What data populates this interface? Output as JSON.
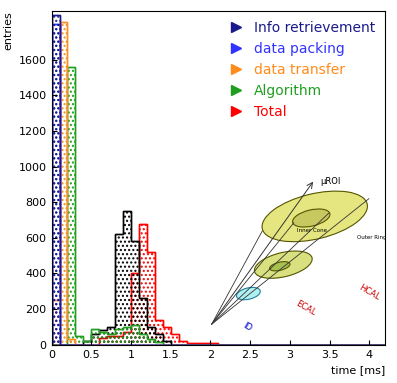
{
  "chart_data": {
    "type": "histogram",
    "x_label": "time [ms]",
    "y_label": "entries",
    "bins": [
      0,
      0.1,
      0.2,
      0.3,
      0.4,
      0.5,
      0.6,
      0.7,
      0.8,
      0.9,
      1.0,
      1.1,
      1.2,
      1.3,
      1.4,
      1.5,
      1.6,
      1.7,
      1.8,
      1.9,
      2.0,
      2.1,
      2.2,
      2.3,
      2.4,
      2.5,
      2.6,
      2.7,
      2.8,
      2.9,
      3.0,
      3.1,
      3.2,
      3.3,
      3.4,
      3.5,
      3.6,
      3.7,
      3.8,
      3.9,
      4.0,
      4.1,
      4.2
    ],
    "series": [
      {
        "name": "Total",
        "color": "#ff0000",
        "values": [
          0,
          0,
          0,
          0,
          0,
          0,
          40,
          50,
          50,
          70,
          400,
          680,
          520,
          140,
          100,
          60,
          20,
          10,
          10,
          10,
          10,
          0,
          0,
          0,
          0,
          0,
          0,
          0,
          0,
          0,
          0,
          0,
          0,
          0,
          0,
          0,
          0,
          0,
          0,
          0,
          0,
          0
        ]
      },
      {
        "color": "#000000",
        "values": [
          0,
          0,
          0,
          0,
          20,
          60,
          80,
          100,
          620,
          750,
          580,
          260,
          100,
          60,
          20,
          0,
          0,
          0,
          0,
          0,
          0,
          0,
          0,
          0,
          0,
          0,
          0,
          0,
          0,
          0,
          0,
          0,
          0,
          0,
          0,
          0,
          0,
          0,
          0,
          0,
          0,
          0
        ]
      },
      {
        "name": "Algorithm",
        "color": "#1f9e1f",
        "values": [
          0,
          0,
          1560,
          50,
          20,
          90,
          70,
          60,
          90,
          100,
          110,
          60,
          30,
          15,
          0,
          0,
          0,
          0,
          0,
          0,
          0,
          0,
          0,
          0,
          0,
          0,
          0,
          0,
          0,
          0,
          0,
          0,
          0,
          0,
          0,
          0,
          0,
          0,
          0,
          0,
          0,
          0
        ]
      },
      {
        "name": "data transfer",
        "color": "#ff8c1a",
        "values": [
          250,
          1810,
          30,
          0,
          0,
          0,
          0,
          0,
          0,
          0,
          0,
          0,
          0,
          0,
          0,
          0,
          0,
          0,
          0,
          0,
          0,
          0,
          0,
          0,
          0,
          0,
          0,
          0,
          0,
          0,
          0,
          0,
          0,
          0,
          0,
          0,
          0,
          0,
          0,
          0,
          0,
          0
        ]
      },
      {
        "name": "data packing",
        "color": "#3333ff",
        "values": [
          1800,
          0,
          0,
          0,
          0,
          0,
          0,
          0,
          0,
          0,
          0,
          0,
          0,
          0,
          0,
          0,
          0,
          0,
          0,
          0,
          0,
          0,
          0,
          0,
          0,
          0,
          0,
          0,
          0,
          0,
          0,
          0,
          0,
          0,
          0,
          0,
          0,
          0,
          0,
          0,
          0,
          0
        ]
      },
      {
        "name": "Info retrievement",
        "color": "#1a1a8c",
        "values": [
          1850,
          0,
          0,
          0,
          0,
          0,
          0,
          0,
          0,
          0,
          0,
          0,
          0,
          0,
          0,
          0,
          0,
          0,
          0,
          0,
          0,
          0,
          0,
          0,
          0,
          0,
          0,
          0,
          0,
          0,
          0,
          0,
          0,
          0,
          0,
          0,
          0,
          0,
          0,
          0,
          0,
          0
        ]
      }
    ],
    "legend_order": [
      "Info retrievement",
      "data packing",
      "data transfer",
      "Algorithm",
      "Total"
    ],
    "legend": "upper right",
    "xlim": [
      0,
      4.2
    ],
    "xticks": [
      0,
      0.5,
      1,
      1.5,
      2,
      2.5,
      3,
      3.5,
      4
    ],
    "ylim": [
      0,
      1870
    ],
    "yticks": [
      0,
      200,
      400,
      600,
      800,
      1000,
      1200,
      1400,
      1600
    ],
    "inset_labels": [
      "μROI",
      "Inner Cone",
      "Outer Ring",
      "HCAL",
      "ECAL",
      "ID"
    ]
  }
}
